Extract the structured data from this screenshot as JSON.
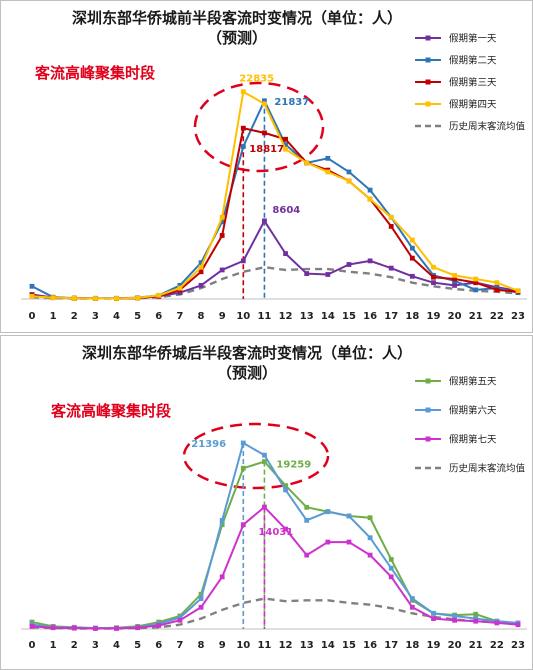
{
  "colors": {
    "day1": "#7030a0",
    "day2": "#2e75b6",
    "day3": "#c00000",
    "day4": "#ffc000",
    "day5": "#70ad47",
    "day6": "#5b9bd5",
    "day7": "#cc33cc",
    "history": "#808080",
    "ellipse": "#e0001b"
  },
  "chart_data": [
    {
      "type": "line",
      "title": "深圳东部华侨城前半段客流时变情况（单位：人）",
      "subtitle": "（预测）",
      "annotation": "客流高峰聚集时段",
      "categories": [
        "0",
        "1",
        "2",
        "3",
        "4",
        "5",
        "6",
        "7",
        "8",
        "9",
        "10",
        "11",
        "12",
        "13",
        "14",
        "15",
        "16",
        "17",
        "18",
        "19",
        "20",
        "21",
        "22",
        "23"
      ],
      "ylim": [
        0,
        26000
      ],
      "grid": false,
      "legend_position": "right",
      "series": [
        {
          "name": "假期第一天",
          "color": "#7030a0",
          "style": "solid",
          "values": [
            500,
            150,
            80,
            60,
            60,
            100,
            300,
            700,
            1500,
            3200,
            4200,
            8604,
            5000,
            2800,
            2700,
            3800,
            4200,
            3400,
            2500,
            1800,
            1500,
            1800,
            1300,
            900
          ]
        },
        {
          "name": "假期第二天",
          "color": "#2e75b6",
          "style": "solid",
          "values": [
            1400,
            200,
            100,
            80,
            80,
            150,
            400,
            1500,
            4000,
            8500,
            16800,
            21837,
            17000,
            15000,
            15500,
            14000,
            12000,
            9000,
            5600,
            2600,
            2000,
            1000,
            1200,
            700
          ]
        },
        {
          "name": "假期第三天",
          "color": "#c00000",
          "style": "solid",
          "values": [
            400,
            150,
            80,
            60,
            60,
            100,
            300,
            1000,
            3000,
            7000,
            18817,
            18300,
            17600,
            15000,
            14200,
            13000,
            11000,
            8000,
            4500,
            2400,
            2200,
            1800,
            1000,
            800
          ]
        },
        {
          "name": "假期第四天",
          "color": "#ffc000",
          "style": "solid",
          "values": [
            300,
            150,
            80,
            60,
            60,
            120,
            400,
            1200,
            3500,
            9000,
            22835,
            21500,
            16500,
            15000,
            14000,
            13000,
            11000,
            9000,
            6500,
            3500,
            2600,
            2200,
            1800,
            900
          ]
        },
        {
          "name": "历史周末客流均值",
          "color": "#808080",
          "style": "dashed",
          "values": [
            200,
            100,
            60,
            50,
            50,
            100,
            200,
            500,
            1200,
            2200,
            3000,
            3500,
            3200,
            3300,
            3300,
            3000,
            2800,
            2400,
            1800,
            1400,
            1100,
            900,
            800,
            600
          ]
        }
      ],
      "data_labels": [
        {
          "series": "假期第一天",
          "x": "11",
          "text": "8604"
        },
        {
          "series": "假期第二天",
          "x": "11",
          "text": "21837"
        },
        {
          "series": "假期第三天",
          "x": "10",
          "text": "18817"
        },
        {
          "series": "假期第四天",
          "x": "10",
          "text": "22835"
        }
      ]
    },
    {
      "type": "line",
      "title": "深圳东部华侨城后半段客流时变情况（单位：人）",
      "subtitle": "（预测）",
      "annotation": "客流高峰聚集时段",
      "categories": [
        "0",
        "1",
        "2",
        "3",
        "4",
        "5",
        "6",
        "7",
        "8",
        "9",
        "10",
        "11",
        "12",
        "13",
        "14",
        "15",
        "16",
        "17",
        "18",
        "19",
        "20",
        "21",
        "22",
        "23"
      ],
      "ylim": [
        0,
        26000
      ],
      "grid": false,
      "legend_position": "right",
      "series": [
        {
          "name": "假期第五天",
          "color": "#70ad47",
          "style": "solid",
          "values": [
            800,
            300,
            200,
            100,
            150,
            300,
            800,
            1500,
            4000,
            12000,
            18500,
            19259,
            16500,
            14000,
            13500,
            13000,
            12800,
            8000,
            3300,
            1800,
            1600,
            1700,
            900,
            600
          ]
        },
        {
          "name": "假期第六天",
          "color": "#5b9bd5",
          "style": "solid",
          "values": [
            500,
            200,
            150,
            100,
            100,
            200,
            600,
            1300,
            3500,
            12500,
            21396,
            20000,
            16000,
            12500,
            13500,
            13000,
            10500,
            7000,
            3500,
            1800,
            1500,
            1200,
            900,
            700
          ]
        },
        {
          "name": "假期第七天",
          "color": "#cc33cc",
          "style": "solid",
          "values": [
            300,
            150,
            100,
            60,
            60,
            150,
            400,
            1000,
            2500,
            6000,
            12000,
            14031,
            11500,
            8500,
            10000,
            10000,
            8500,
            6000,
            2500,
            1200,
            1000,
            900,
            700,
            500
          ]
        },
        {
          "name": "历史周末客流均值",
          "color": "#808080",
          "style": "dashed",
          "values": [
            200,
            100,
            60,
            50,
            50,
            100,
            200,
            500,
            1200,
            2200,
            3000,
            3500,
            3200,
            3300,
            3300,
            3000,
            2800,
            2400,
            1800,
            1400,
            1100,
            900,
            800,
            600
          ]
        }
      ],
      "data_labels": [
        {
          "series": "假期第六天",
          "x": "10",
          "text": "21396"
        },
        {
          "series": "假期第五天",
          "x": "11",
          "text": "19259"
        },
        {
          "series": "假期第七天",
          "x": "11",
          "text": "14031"
        }
      ]
    }
  ]
}
